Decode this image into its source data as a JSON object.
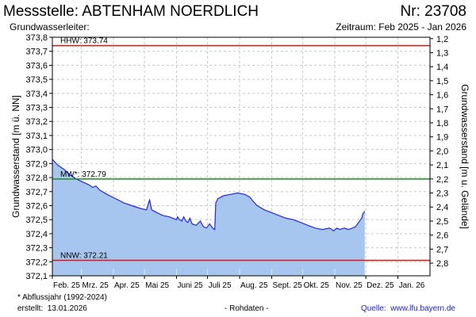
{
  "header": {
    "title": "Messstelle: ABTENHAM NOERDLICH",
    "nr": "Nr: 23708",
    "aquifer": "Grundwasserleiter:",
    "period": "Zeitraum: Feb 2025 - Jan 2026"
  },
  "footer": {
    "note": "* Abflussjahr (1992-2024)",
    "created_label": "erstellt:",
    "created_date": "13.01.2026",
    "raw": "- Rohdaten -",
    "source_label": "Quelle:",
    "source_url": "www.lfu.bayern.de"
  },
  "chart_data": {
    "type": "area",
    "ylabel": "Grundwasserstand [m ü. NN]",
    "ylabel_right": "Grundwasserstand [m u. Gelände]",
    "ylim": [
      372.1,
      373.8
    ],
    "y_ticks": [
      "373,8",
      "373,7",
      "373,6",
      "373,5",
      "373,4",
      "373,3",
      "373,2",
      "373,1",
      "373,0",
      "372,9",
      "372,8",
      "372,7",
      "372,6",
      "372,5",
      "372,4",
      "372,3",
      "372,2",
      "372,1"
    ],
    "y2_ticks": [
      "1,2",
      "1,3",
      "1,4",
      "1,5",
      "1,6",
      "1,7",
      "1,8",
      "1,9",
      "2,0",
      "2,1",
      "2,2",
      "2,3",
      "2,4",
      "2,5",
      "2,6",
      "2,7",
      "2,8"
    ],
    "y2_values": [
      1.2,
      1.3,
      1.4,
      1.5,
      1.6,
      1.7,
      1.8,
      1.9,
      2.0,
      2.1,
      2.2,
      2.3,
      2.4,
      2.5,
      2.6,
      2.7,
      2.8
    ],
    "y2_reference": 374.99,
    "x_ticks": [
      "Feb. 25",
      "Mrz. 25",
      "Apr. 25",
      "Mai 25",
      "Juni 25",
      "Juli 25",
      "Aug. 25",
      "Sept. 25",
      "Okt. 25",
      "Nov. 25",
      "Dez. 25",
      "Jan. 26"
    ],
    "x_tick_dates": [
      "2025-02-01",
      "2025-03-01",
      "2025-04-01",
      "2025-05-01",
      "2025-06-01",
      "2025-07-01",
      "2025-08-01",
      "2025-09-01",
      "2025-10-01",
      "2025-11-01",
      "2025-12-01",
      "2026-01-01"
    ],
    "x_range": [
      "2025-02-01",
      "2026-02-01"
    ],
    "grid": true,
    "colors": {
      "series": "#2727d9",
      "fill": "#a6c6ef",
      "hhw": "#e01414",
      "mw": "#1e8c1e",
      "nnw": "#e01414",
      "grid": "#c8c8c8"
    },
    "reference_lines": [
      {
        "label": "HHW: 373.74",
        "value": 373.74,
        "color": "#e01414"
      },
      {
        "label": "MW*: 372.79",
        "value": 372.79,
        "color": "#1e8c1e"
      },
      {
        "label": "NNW: 372.21",
        "value": 372.21,
        "color": "#e01414"
      }
    ],
    "series": [
      {
        "x": [
          "2025-02-01",
          "2025-02-06",
          "2025-02-12",
          "2025-02-18",
          "2025-02-24",
          "2025-03-02",
          "2025-03-08",
          "2025-03-12",
          "2025-03-15",
          "2025-03-19",
          "2025-03-26",
          "2025-04-03",
          "2025-04-11",
          "2025-04-19",
          "2025-04-27",
          "2025-05-03",
          "2025-05-05",
          "2025-05-06",
          "2025-05-08",
          "2025-05-13",
          "2025-05-19",
          "2025-05-25",
          "2025-06-01",
          "2025-06-02",
          "2025-06-04",
          "2025-06-06",
          "2025-06-08",
          "2025-06-10",
          "2025-06-12",
          "2025-06-14",
          "2025-06-16",
          "2025-06-20",
          "2025-06-24",
          "2025-06-27",
          "2025-06-30",
          "2025-07-03",
          "2025-07-06",
          "2025-07-08",
          "2025-07-09",
          "2025-07-11",
          "2025-07-14",
          "2025-07-16",
          "2025-07-23",
          "2025-07-30",
          "2025-08-06",
          "2025-08-11",
          "2025-08-13",
          "2025-08-18",
          "2025-08-25",
          "2025-09-01",
          "2025-09-08",
          "2025-09-15",
          "2025-09-22",
          "2025-09-29",
          "2025-10-06",
          "2025-10-13",
          "2025-10-20",
          "2025-10-27",
          "2025-10-31",
          "2025-11-03",
          "2025-11-06",
          "2025-11-10",
          "2025-11-14",
          "2025-11-18",
          "2025-11-21",
          "2025-11-24",
          "2025-11-27",
          "2025-11-28",
          "2025-11-30"
        ],
        "y": [
          372.93,
          372.89,
          372.86,
          372.82,
          372.79,
          372.77,
          372.75,
          372.73,
          372.74,
          372.71,
          372.68,
          372.65,
          372.62,
          372.6,
          372.58,
          372.57,
          372.62,
          372.64,
          372.57,
          372.55,
          372.53,
          372.52,
          372.5,
          372.52,
          372.5,
          372.49,
          372.52,
          372.49,
          372.48,
          372.51,
          372.47,
          372.46,
          372.49,
          372.45,
          372.44,
          372.47,
          372.44,
          372.43,
          372.62,
          372.65,
          372.66,
          372.67,
          372.68,
          372.69,
          372.68,
          372.66,
          372.64,
          372.6,
          372.57,
          372.55,
          372.53,
          372.51,
          372.5,
          372.48,
          372.46,
          372.44,
          372.43,
          372.44,
          372.42,
          372.44,
          372.43,
          372.44,
          372.43,
          372.44,
          372.45,
          372.48,
          372.51,
          372.54,
          372.56
        ]
      }
    ]
  }
}
